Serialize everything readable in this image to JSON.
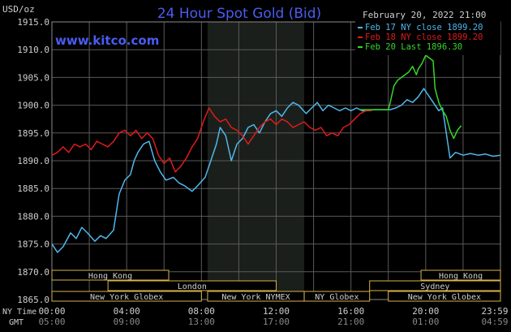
{
  "header": {
    "title": "24 Hour Spot Gold (Bid)",
    "unit_label": "USD/oz",
    "site": "www.kitco.com",
    "date_label": "February 20, 2022 21:00"
  },
  "legend": [
    {
      "text": "Feb 17 NY close 1899.20",
      "color": "#4fb8ec"
    },
    {
      "text": "Feb 18 NY close 1899.20",
      "color": "#e01b1b"
    },
    {
      "text": "Feb 20 Last 1896.30",
      "color": "#36d62a"
    }
  ],
  "axes": {
    "x_row1_label": "NY Time",
    "x_row2_label": "GMT",
    "x_ticks_ny": [
      "00:00",
      "04:00",
      "08:00",
      "12:00",
      "16:00",
      "20:00",
      "23:59"
    ],
    "x_ticks_gmt": [
      "05:00",
      "09:00",
      "13:00",
      "17:00",
      "21:00",
      "01:00",
      "04:59"
    ],
    "y_ticks": [
      "1915.0",
      "1910.0",
      "1905.0",
      "1900.0",
      "1895.0",
      "1890.0",
      "1885.0",
      "1880.0",
      "1875.0",
      "1870.0",
      "1865.0"
    ]
  },
  "sessions": [
    {
      "label": "Hong Kong",
      "row": 0,
      "start": 0,
      "end": 6.25
    },
    {
      "label": "Hong Kong",
      "row": 0,
      "start": 19.75,
      "end": 24
    },
    {
      "label": "London",
      "row": 1,
      "start": 3,
      "end": 12
    },
    {
      "label": "Sydney",
      "row": 1,
      "start": 17,
      "end": 24
    },
    {
      "label": "New York Globex",
      "row": 2,
      "start": 0,
      "end": 8
    },
    {
      "label": "New York NYMEX",
      "row": 2,
      "start": 8.33,
      "end": 13.5
    },
    {
      "label": "NY Globex",
      "row": 2,
      "start": 13.5,
      "end": 17
    },
    {
      "label": "New York Globex",
      "row": 2,
      "start": 18,
      "end": 24
    }
  ],
  "colors": {
    "background": "#000000",
    "grid": "#5a5a5a",
    "nymex_band": "#1b1f1b",
    "title": "#4a5cf0",
    "text": "#cfcfcf",
    "session_border": "#d8b24a",
    "flat_line": "#36d62a"
  },
  "chart_data": {
    "type": "line",
    "title": "24 Hour Spot Gold (Bid)",
    "ylabel": "USD/oz",
    "xlabel": "NY Time / GMT",
    "xlim": [
      0,
      24
    ],
    "ylim": [
      1865,
      1915
    ],
    "grid": true,
    "legend_position": "top-right",
    "nymex_window": [
      8.33,
      13.5
    ],
    "series": [
      {
        "name": "Feb 17 NY close 1899.20",
        "color": "#4fb8ec",
        "x": [
          0,
          0.3,
          0.6,
          1.0,
          1.3,
          1.6,
          1.9,
          2.3,
          2.6,
          2.9,
          3.3,
          3.6,
          3.9,
          4.2,
          4.4,
          4.6,
          4.9,
          5.2,
          5.5,
          5.8,
          6.1,
          6.5,
          6.8,
          7.1,
          7.5,
          7.8,
          8.2,
          8.5,
          8.8,
          9.0,
          9.3,
          9.6,
          9.9,
          10.2,
          10.5,
          10.8,
          11.1,
          11.4,
          11.7,
          12.0,
          12.3,
          12.6,
          12.9,
          13.2,
          13.6,
          13.9,
          14.2,
          14.5,
          14.8,
          15.1,
          15.4,
          15.7,
          16.0,
          16.3,
          16.6,
          16.9,
          17.2,
          17.5,
          17.8,
          18.1,
          18.4,
          18.7,
          19.0,
          19.3,
          19.6,
          19.9,
          20.2,
          20.5,
          20.7,
          20.9,
          21.1,
          21.3,
          21.6,
          22.0,
          22.4,
          22.8,
          23.2,
          23.6,
          23.99
        ],
        "values": [
          1875.0,
          1873.5,
          1874.5,
          1877.0,
          1876.0,
          1878.0,
          1877.0,
          1875.5,
          1876.5,
          1876.0,
          1877.5,
          1884.0,
          1886.5,
          1887.5,
          1890.0,
          1891.5,
          1893.0,
          1893.5,
          1890.0,
          1888.0,
          1886.5,
          1887.0,
          1886.0,
          1885.5,
          1884.5,
          1885.5,
          1887.0,
          1890.0,
          1893.0,
          1896.0,
          1894.5,
          1890.0,
          1893.0,
          1894.0,
          1896.0,
          1896.5,
          1895.0,
          1897.0,
          1898.5,
          1899.0,
          1898.0,
          1899.5,
          1900.5,
          1900.0,
          1898.5,
          1899.5,
          1900.5,
          1899.0,
          1900.0,
          1899.5,
          1899.0,
          1899.5,
          1899.0,
          1899.5,
          1899.0,
          1899.0,
          1899.2,
          1899.2,
          1899.2,
          1899.2,
          1899.5,
          1900.0,
          1901.0,
          1900.5,
          1901.5,
          1903.0,
          1901.5,
          1900.0,
          1899.0,
          1899.5,
          1895.0,
          1890.5,
          1891.5,
          1891.0,
          1891.3,
          1891.0,
          1891.2,
          1890.8,
          1891.0
        ]
      },
      {
        "name": "Feb 18 NY close 1899.20",
        "color": "#e01b1b",
        "x": [
          0,
          0.3,
          0.6,
          0.9,
          1.2,
          1.5,
          1.8,
          2.1,
          2.4,
          2.7,
          3.0,
          3.3,
          3.6,
          3.9,
          4.2,
          4.5,
          4.8,
          5.1,
          5.4,
          5.7,
          6.0,
          6.3,
          6.6,
          6.9,
          7.2,
          7.5,
          7.8,
          8.1,
          8.4,
          8.7,
          9.0,
          9.3,
          9.6,
          9.9,
          10.2,
          10.5,
          10.8,
          11.1,
          11.4,
          11.7,
          12.0,
          12.3,
          12.6,
          12.9,
          13.2,
          13.5,
          13.8,
          14.1,
          14.4,
          14.7,
          15.0,
          15.3,
          15.6,
          15.9,
          16.2,
          16.5,
          16.8,
          17.1
        ],
        "values": [
          1891.0,
          1891.5,
          1892.5,
          1891.5,
          1893.0,
          1892.5,
          1893.0,
          1892.0,
          1893.5,
          1893.0,
          1892.5,
          1893.5,
          1895.0,
          1895.5,
          1894.5,
          1895.5,
          1894.0,
          1895.0,
          1894.0,
          1891.0,
          1889.5,
          1890.5,
          1888.0,
          1889.0,
          1890.5,
          1892.5,
          1894.0,
          1897.0,
          1899.5,
          1898.0,
          1897.0,
          1897.5,
          1896.0,
          1895.5,
          1894.5,
          1893.0,
          1894.5,
          1896.0,
          1897.0,
          1897.5,
          1896.5,
          1897.5,
          1897.0,
          1896.0,
          1896.5,
          1897.0,
          1896.0,
          1895.5,
          1896.0,
          1894.5,
          1895.0,
          1894.5,
          1896.0,
          1896.5,
          1897.5,
          1898.5,
          1899.0,
          1899.0
        ]
      },
      {
        "name": "Feb 20 Last 1896.30",
        "color": "#36d62a",
        "x": [
          16.5,
          17.0,
          17.5,
          18.0,
          18.1,
          18.3,
          18.5,
          18.7,
          18.9,
          19.1,
          19.3,
          19.5,
          19.6,
          19.8,
          20.0,
          20.2,
          20.4,
          20.5,
          20.7,
          20.9,
          21.1,
          21.3,
          21.5,
          21.7,
          21.9
        ],
        "values": [
          1899.2,
          1899.2,
          1899.2,
          1899.2,
          1900.5,
          1903.5,
          1904.5,
          1905.0,
          1905.5,
          1906.0,
          1907.0,
          1905.5,
          1906.5,
          1907.5,
          1909.0,
          1908.5,
          1908.0,
          1903.0,
          1900.5,
          1899.0,
          1898.0,
          1895.5,
          1894.0,
          1895.5,
          1896.3
        ]
      }
    ]
  }
}
